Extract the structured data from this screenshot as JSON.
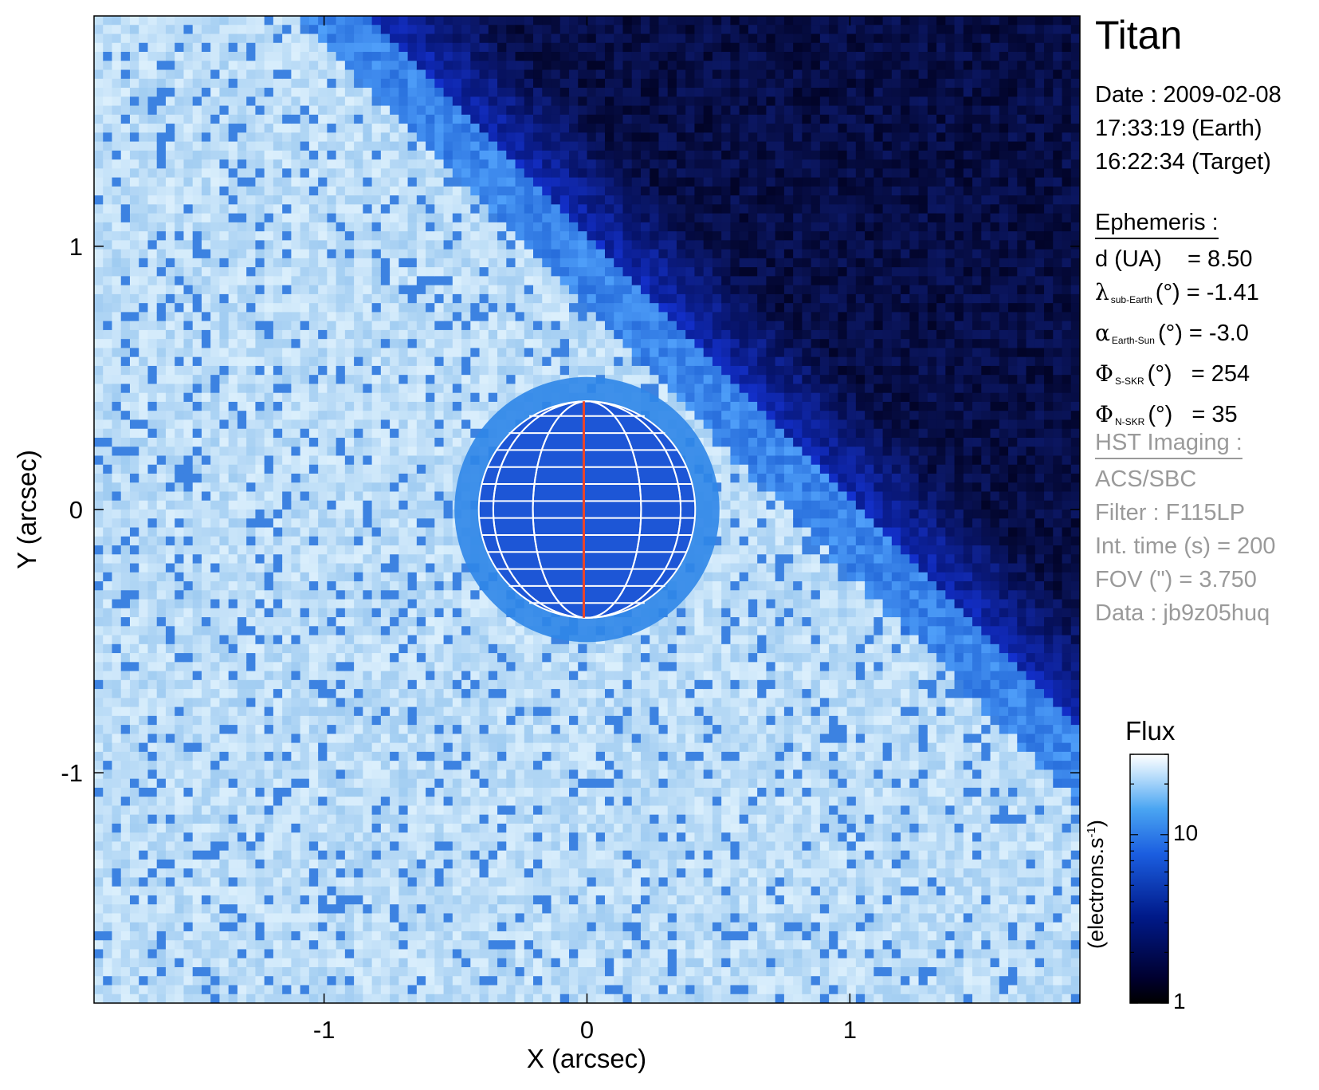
{
  "chart_data": {
    "type": "heatmap",
    "title": "Titan",
    "xlabel": "X (arcsec)",
    "ylabel": "Y (arcsec)",
    "xlim": [
      -1.875,
      1.875
    ],
    "ylim": [
      -1.875,
      1.875
    ],
    "x_ticks": [
      "-1",
      "0",
      "1"
    ],
    "x_tick_values": [
      -1,
      0,
      1
    ],
    "y_ticks": [
      "1",
      "0",
      "-1"
    ],
    "y_tick_values": [
      1,
      0,
      -1
    ],
    "grid": false,
    "image_description": "noisy light-blue sky background with dark blue planetary disk at center and dark region in top-right corner",
    "background_flux": 16,
    "disk_flux": 8,
    "corner_flux": 1.5,
    "disk_radius_arcsec": 0.42,
    "globe_overlay": {
      "meridian_color": "#e8452a",
      "grid_color": "#ffffff",
      "parallels": 13,
      "meridians": 6
    },
    "colorbar": {
      "title": "Flux",
      "units_label": "(electrons.s",
      "units_sup": "-1",
      "units_close": ")",
      "scale": "log",
      "range": [
        1,
        30
      ],
      "tick_labels": [
        "10",
        "1"
      ],
      "tick_values": [
        10,
        1
      ],
      "colors": [
        "#000000",
        "#00002f",
        "#001a8a",
        "#1b5ee0",
        "#4aa5f2",
        "#c8e5fc",
        "#ffffff"
      ]
    }
  },
  "info": {
    "date_label": "Date : 2009-02-08",
    "earth_time": "17:33:19 (Earth)",
    "target_time": "16:22:34 (Target)",
    "ephemeris": {
      "heading": "Ephemeris :",
      "d_label": "d (UA)",
      "d_value": "= 8.50",
      "lambda_sym": "λ",
      "lambda_sub": "sub-Earth",
      "lambda_rest": "(°) = -1.41",
      "alpha_sym": "α",
      "alpha_sub": "Earth-Sun",
      "alpha_rest": "(°) = -3.0",
      "phi_s_sym": "Φ",
      "phi_s_sub": "S-SKR",
      "phi_s_rest": "(°)   = 254",
      "phi_n_sym": "Φ",
      "phi_n_sub": "N-SKR",
      "phi_n_rest": "(°)   = 35"
    },
    "hst": {
      "heading": "HST Imaging :",
      "instrument": "ACS/SBC",
      "filter": "Filter : F115LP",
      "int_time": "Int. time (s) = 200",
      "fov": "FOV (\") = 3.750",
      "data": "Data : jb9z05huq"
    }
  }
}
